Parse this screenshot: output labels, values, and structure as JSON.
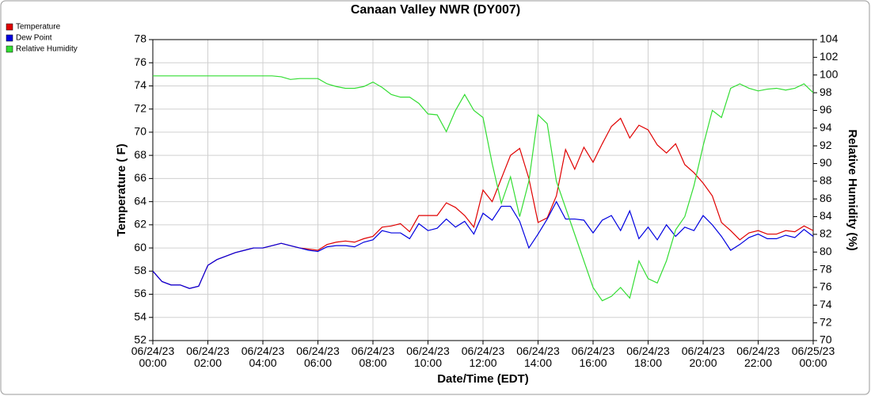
{
  "chart_data": {
    "type": "line",
    "title": "Canaan Valley NWR (DY007)",
    "xlabel": "Date/Time (EDT)",
    "ylabel": "Temperature ( F)",
    "y2label": "Relative Humidity (%)",
    "grid": true,
    "legend": "top-left",
    "xlim": [
      "06/24/23 00:00",
      "06/25/23 00:00"
    ],
    "xticks": [
      "06/24/23 00:00",
      "06/24/23 02:00",
      "06/24/23 04:00",
      "06/24/23 06:00",
      "06/24/23 08:00",
      "06/24/23 10:00",
      "06/24/23 12:00",
      "06/24/23 14:00",
      "06/24/23 16:00",
      "06/24/23 18:00",
      "06/24/23 20:00",
      "06/24/23 22:00",
      "06/25/23 00:00"
    ],
    "ylim": [
      52,
      78
    ],
    "yticks": [
      52,
      54,
      56,
      58,
      60,
      62,
      64,
      66,
      68,
      70,
      72,
      74,
      76,
      78
    ],
    "y2lim": [
      70,
      104
    ],
    "y2ticks": [
      70,
      72,
      74,
      76,
      78,
      80,
      82,
      84,
      86,
      88,
      90,
      92,
      94,
      96,
      98,
      100,
      102,
      104
    ],
    "x": [
      "06/24/23 00:00",
      "06/24/23 00:20",
      "06/24/23 00:40",
      "06/24/23 01:00",
      "06/24/23 01:20",
      "06/24/23 01:40",
      "06/24/23 02:00",
      "06/24/23 02:20",
      "06/24/23 02:40",
      "06/24/23 03:00",
      "06/24/23 03:20",
      "06/24/23 03:40",
      "06/24/23 04:00",
      "06/24/23 04:20",
      "06/24/23 04:40",
      "06/24/23 05:00",
      "06/24/23 05:20",
      "06/24/23 05:40",
      "06/24/23 06:00",
      "06/24/23 06:20",
      "06/24/23 06:40",
      "06/24/23 07:00",
      "06/24/23 07:20",
      "06/24/23 07:40",
      "06/24/23 08:00",
      "06/24/23 08:20",
      "06/24/23 08:40",
      "06/24/23 09:00",
      "06/24/23 09:20",
      "06/24/23 09:40",
      "06/24/23 10:00",
      "06/24/23 10:20",
      "06/24/23 10:40",
      "06/24/23 11:00",
      "06/24/23 11:20",
      "06/24/23 11:40",
      "06/24/23 12:00",
      "06/24/23 12:20",
      "06/24/23 12:40",
      "06/24/23 13:00",
      "06/24/23 13:20",
      "06/24/23 13:40",
      "06/24/23 14:00",
      "06/24/23 14:20",
      "06/24/23 14:40",
      "06/24/23 15:00",
      "06/24/23 15:20",
      "06/24/23 15:40",
      "06/24/23 16:00",
      "06/24/23 16:20",
      "06/24/23 16:40",
      "06/24/23 17:00",
      "06/24/23 17:20",
      "06/24/23 17:40",
      "06/24/23 18:00",
      "06/24/23 18:20",
      "06/24/23 18:40",
      "06/24/23 19:00",
      "06/24/23 19:20",
      "06/24/23 19:40",
      "06/24/23 20:00",
      "06/24/23 20:20",
      "06/24/23 20:40",
      "06/24/23 21:00",
      "06/24/23 21:20",
      "06/24/23 21:40",
      "06/24/23 22:00",
      "06/24/23 22:20",
      "06/24/23 22:40",
      "06/24/23 23:00",
      "06/24/23 23:20",
      "06/24/23 23:40",
      "06/25/23 00:00"
    ],
    "series": [
      {
        "name": "Temperature",
        "color": "#e00000",
        "values": [
          58.0,
          57.1,
          56.8,
          56.8,
          56.5,
          56.7,
          58.5,
          59.0,
          59.3,
          59.6,
          59.8,
          60.0,
          60.0,
          60.2,
          60.4,
          60.2,
          60.0,
          59.9,
          59.8,
          60.3,
          60.5,
          60.6,
          60.5,
          60.8,
          61.0,
          61.8,
          61.9,
          62.1,
          61.4,
          62.8,
          62.8,
          62.8,
          63.9,
          63.5,
          62.8,
          61.8,
          65.0,
          64.0,
          66.0,
          68.0,
          68.6,
          66.0,
          62.2,
          62.6,
          64.5,
          68.5,
          66.8,
          68.7,
          67.4,
          69.0,
          70.5,
          71.2,
          69.5,
          70.6,
          70.2,
          68.9,
          68.2,
          69.0,
          67.2,
          66.5,
          65.6,
          64.5,
          62.2,
          61.5,
          60.7,
          61.3,
          61.5,
          61.2,
          61.2,
          61.5,
          61.4,
          61.9,
          61.5
        ]
      },
      {
        "name": "Dew Point",
        "color": "#0000e0",
        "values": [
          58.0,
          57.1,
          56.8,
          56.8,
          56.5,
          56.7,
          58.5,
          59.0,
          59.3,
          59.6,
          59.8,
          60.0,
          60.0,
          60.2,
          60.4,
          60.2,
          60.0,
          59.8,
          59.7,
          60.1,
          60.2,
          60.2,
          60.1,
          60.5,
          60.7,
          61.5,
          61.3,
          61.3,
          60.8,
          62.1,
          61.5,
          61.7,
          62.5,
          61.8,
          62.3,
          61.2,
          63.0,
          62.4,
          63.6,
          63.6,
          62.3,
          60.0,
          61.2,
          62.5,
          64.0,
          62.5,
          62.5,
          62.4,
          61.3,
          62.4,
          62.8,
          61.5,
          63.2,
          60.8,
          61.8,
          60.7,
          62.0,
          61.0,
          61.8,
          61.5,
          62.8,
          62.0,
          61.0,
          59.8,
          60.3,
          60.9,
          61.2,
          60.8,
          60.8,
          61.1,
          60.9,
          61.6,
          61.0
        ]
      },
      {
        "name": "Relative Humidity",
        "color": "#33dd33",
        "axis": "y2",
        "values": [
          99.9,
          99.9,
          99.9,
          99.9,
          99.9,
          99.9,
          99.9,
          99.9,
          99.9,
          99.9,
          99.9,
          99.9,
          99.9,
          99.9,
          99.8,
          99.5,
          99.6,
          99.6,
          99.6,
          99.0,
          98.7,
          98.5,
          98.5,
          98.7,
          99.2,
          98.6,
          97.8,
          97.5,
          97.5,
          96.8,
          95.6,
          95.5,
          93.6,
          96.0,
          97.8,
          96.0,
          95.2,
          90.0,
          85.5,
          88.5,
          84.0,
          88.0,
          95.5,
          94.5,
          88.0,
          85.0,
          82.0,
          79.0,
          76.0,
          74.5,
          75.0,
          76.0,
          74.8,
          79.0,
          77.0,
          76.5,
          79.0,
          82.5,
          84.0,
          87.5,
          92.0,
          96.0,
          95.2,
          98.5,
          99.0,
          98.5,
          98.2,
          98.4,
          98.5,
          98.3,
          98.5,
          99.0,
          98.0
        ]
      }
    ]
  }
}
